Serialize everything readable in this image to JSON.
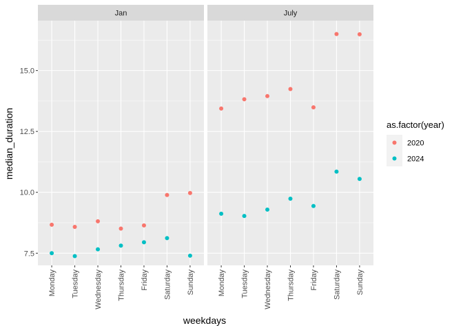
{
  "chart_data": {
    "type": "scatter",
    "facets": [
      "Jan",
      "July"
    ],
    "categories": [
      "Monday",
      "Tuesday",
      "Wednesday",
      "Thursday",
      "Friday",
      "Saturday",
      "Sunday"
    ],
    "xlabel": "weekdays",
    "ylabel": "median_duration",
    "ylim": [
      7.0,
      17.05
    ],
    "yticks": [
      7.5,
      10.0,
      12.5,
      15.0
    ],
    "ytick_labels": [
      "7.5",
      "10.0",
      "12.5",
      "15.0"
    ],
    "grid": true,
    "legend": {
      "title": "as.factor(year)",
      "position": "right"
    },
    "series": [
      {
        "name": "2020",
        "color": "#f8766d",
        "values": {
          "Jan": [
            8.67,
            8.58,
            8.81,
            8.51,
            8.64,
            9.89,
            9.97
          ],
          "July": [
            13.44,
            13.82,
            13.95,
            14.24,
            13.49,
            16.5,
            16.49
          ]
        }
      },
      {
        "name": "2024",
        "color": "#00bfc4",
        "values": {
          "Jan": [
            7.5,
            7.38,
            7.66,
            7.81,
            7.95,
            8.12,
            7.4
          ],
          "July": [
            9.12,
            9.03,
            9.29,
            9.74,
            9.44,
            10.85,
            10.55
          ]
        }
      }
    ]
  }
}
